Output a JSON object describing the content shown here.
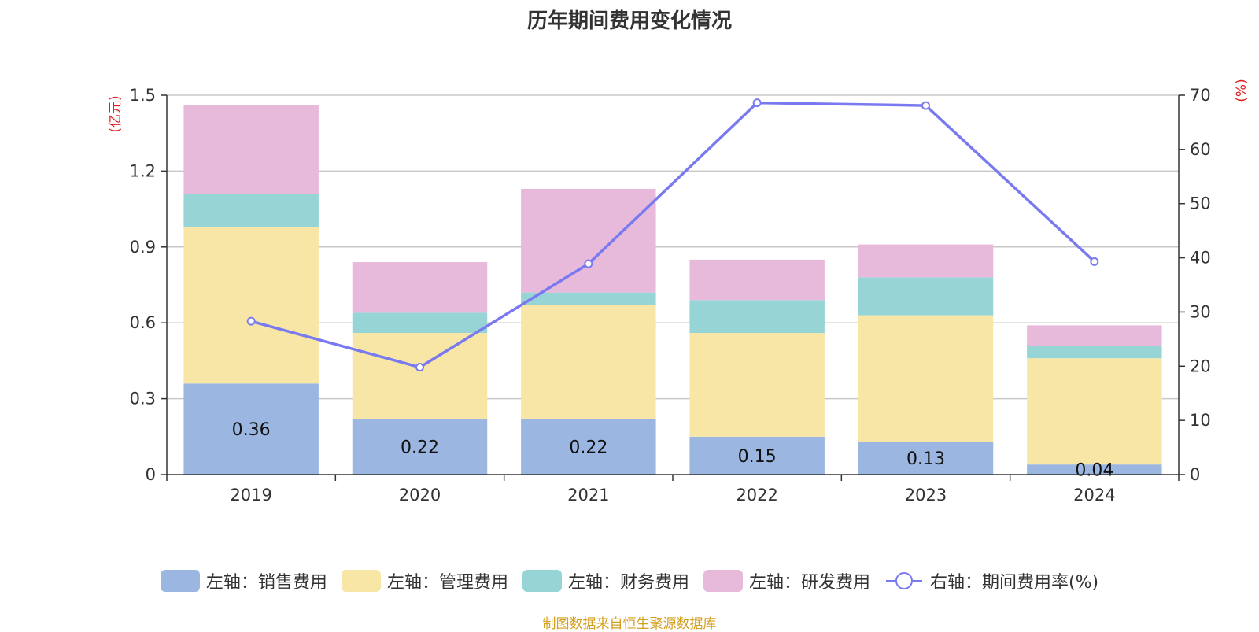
{
  "title": "历年期间费用变化情况",
  "left_axis_unit": "(亿元)",
  "right_axis_unit": "(%)",
  "footer": "制图数据来自恒生聚源数据库",
  "colors": {
    "sales": "#9bb7e1",
    "admin": "#f8e6a7",
    "finance": "#97d4d6",
    "rnd": "#e7b9da",
    "rate": "#7a7af0",
    "unit": "#e02020",
    "footer": "#d4a020",
    "grid": "#c8c8c8"
  },
  "legend": [
    {
      "key": "sales",
      "label": "左轴：销售费用",
      "icon": "swatch"
    },
    {
      "key": "admin",
      "label": "左轴：管理费用",
      "icon": "swatch"
    },
    {
      "key": "finance",
      "label": "左轴：财务费用",
      "icon": "swatch"
    },
    {
      "key": "rnd",
      "label": "左轴：研发费用",
      "icon": "swatch"
    },
    {
      "key": "rate",
      "label": "右轴：期间费用率(%)",
      "icon": "line-circle"
    }
  ],
  "chart_data": {
    "type": "bar",
    "stacked": true,
    "categories": [
      "2019",
      "2020",
      "2021",
      "2022",
      "2023",
      "2024"
    ],
    "series": [
      {
        "key": "sales",
        "name": "左轴：销售费用",
        "axis": "left",
        "values": [
          0.36,
          0.22,
          0.22,
          0.15,
          0.13,
          0.04
        ],
        "labels": [
          "0.36",
          "0.22",
          "0.22",
          "0.15",
          "0.13",
          "0.04"
        ]
      },
      {
        "key": "admin",
        "name": "左轴：管理费用",
        "axis": "left",
        "values": [
          0.62,
          0.34,
          0.45,
          0.41,
          0.5,
          0.42
        ]
      },
      {
        "key": "finance",
        "name": "左轴：财务费用",
        "axis": "left",
        "values": [
          0.13,
          0.08,
          0.05,
          0.13,
          0.15,
          0.05
        ]
      },
      {
        "key": "rnd",
        "name": "左轴：研发费用",
        "axis": "left",
        "values": [
          0.35,
          0.2,
          0.41,
          0.16,
          0.13,
          0.08
        ]
      },
      {
        "key": "rate",
        "name": "右轴：期间费用率(%)",
        "axis": "right",
        "type": "line",
        "values": [
          28.3,
          19.8,
          38.9,
          68.6,
          68.1,
          39.3
        ]
      }
    ],
    "y_left": {
      "ylim": [
        0,
        1.5
      ],
      "ticks": [
        "0",
        "0.3",
        "0.6",
        "0.9",
        "1.2",
        "1.5"
      ]
    },
    "y_right": {
      "ylim": [
        0,
        70
      ],
      "ticks": [
        "0",
        "10",
        "20",
        "30",
        "40",
        "50",
        "60",
        "70"
      ]
    },
    "grid": true,
    "legend_position": "bottom"
  }
}
